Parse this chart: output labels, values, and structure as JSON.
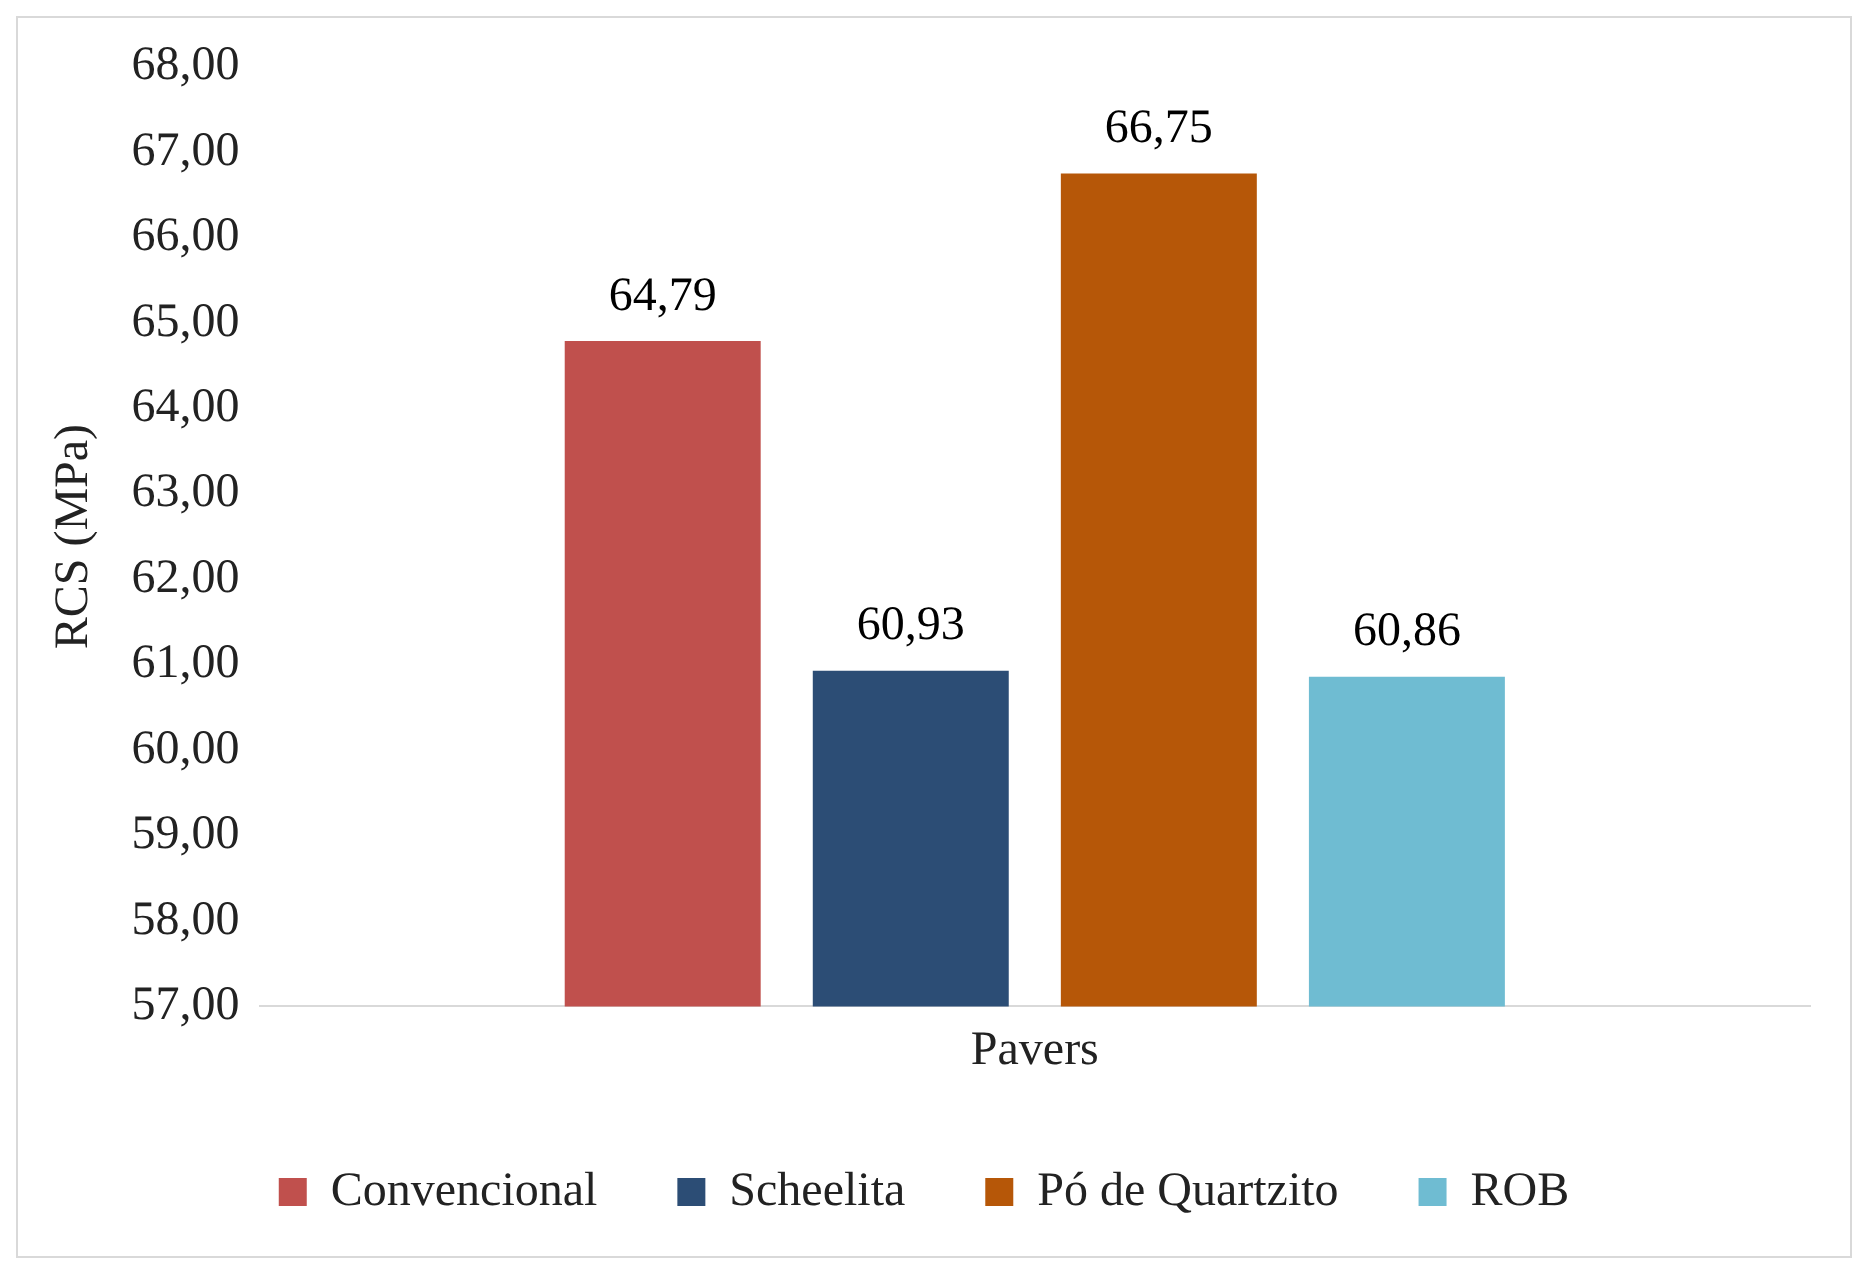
{
  "chart_data": {
    "type": "bar",
    "xlabel": "Pavers",
    "ylabel": "RCS (MPa)",
    "categories": [
      null
    ],
    "series": [
      {
        "name": "Convencional",
        "color": "#c0504d",
        "values": [
          64.79
        ],
        "value_labels": [
          "64,79"
        ]
      },
      {
        "name": "Scheelita",
        "color": "#2c4d75",
        "values": [
          60.93
        ],
        "value_labels": [
          "60,93"
        ]
      },
      {
        "name": "Pó de Quartzito",
        "color": "#b65708",
        "values": [
          66.75
        ],
        "value_labels": [
          "66,75"
        ]
      },
      {
        "name": "ROB",
        "color": "#6fbcd2",
        "values": [
          60.86
        ],
        "value_labels": [
          "60,86"
        ]
      }
    ],
    "ylim": [
      57,
      68
    ],
    "yticks": [
      {
        "value": 57,
        "label": "57,00"
      },
      {
        "value": 58,
        "label": "58,00"
      },
      {
        "value": 59,
        "label": "59,00"
      },
      {
        "value": 60,
        "label": "60,00"
      },
      {
        "value": 61,
        "label": "61,00"
      },
      {
        "value": 62,
        "label": "62,00"
      },
      {
        "value": 63,
        "label": "63,00"
      },
      {
        "value": 64,
        "label": "64,00"
      },
      {
        "value": 65,
        "label": "65,00"
      },
      {
        "value": 66,
        "label": "66,00"
      },
      {
        "value": 67,
        "label": "67,00"
      },
      {
        "value": 68,
        "label": "68,00"
      }
    ],
    "grid": false,
    "legend": "bottom"
  }
}
